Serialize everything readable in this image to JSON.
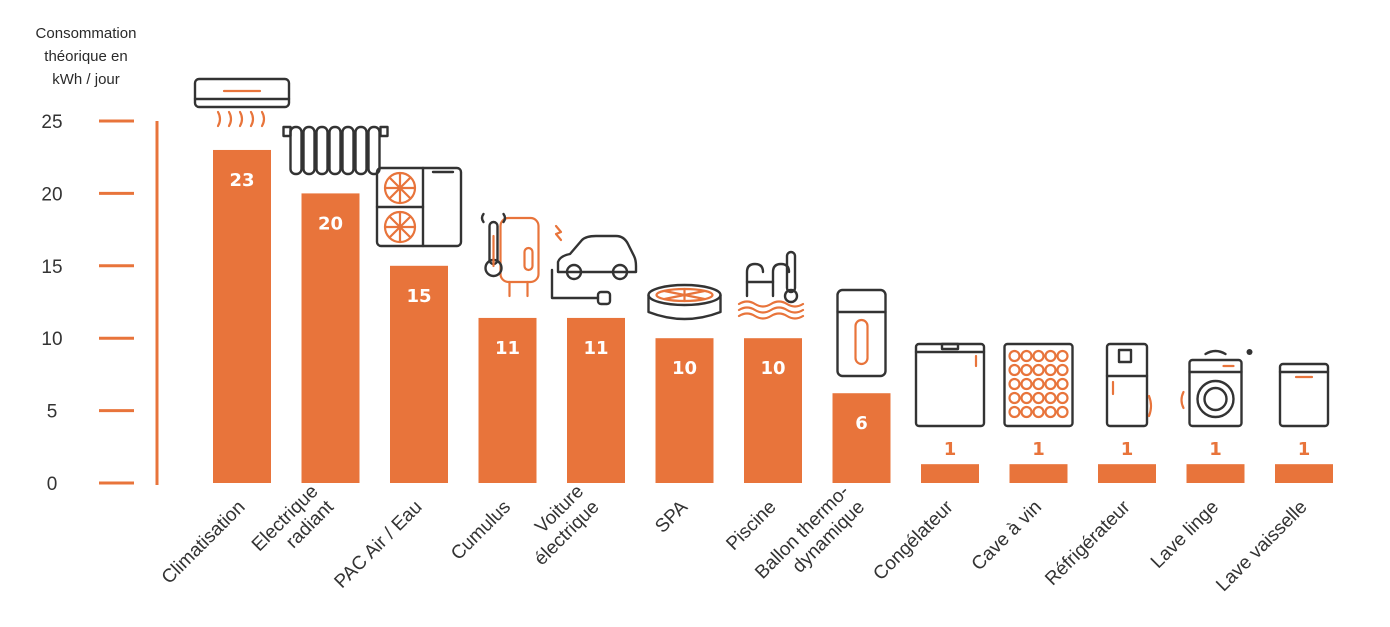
{
  "chart_data": {
    "type": "bar",
    "ylabel": "Consommation théorique en kWh / jour",
    "ylabel_lines": [
      "Consommation",
      "théorique en",
      "kWh / jour"
    ],
    "ylim": [
      0,
      25
    ],
    "yticks": [
      0,
      5,
      10,
      15,
      20,
      25
    ],
    "grid": false,
    "legend": "none",
    "bar_color": "#e8743b",
    "categories": [
      {
        "label_lines": [
          "Climatisation"
        ],
        "value": 23,
        "value_label": "23",
        "icon": "air-conditioner-icon"
      },
      {
        "label_lines": [
          "Electrique",
          "radiant"
        ],
        "value": 20,
        "value_label": "20",
        "icon": "radiator-icon"
      },
      {
        "label_lines": [
          "PAC Air / Eau"
        ],
        "value": 15,
        "value_label": "15",
        "icon": "heat-pump-icon"
      },
      {
        "label_lines": [
          "Cumulus"
        ],
        "value": 11.4,
        "value_label": "11",
        "icon": "water-heater-icon"
      },
      {
        "label_lines": [
          "Voiture",
          "électrique"
        ],
        "value": 11.4,
        "value_label": "11",
        "icon": "electric-car-icon"
      },
      {
        "label_lines": [
          "SPA"
        ],
        "value": 10,
        "value_label": "10",
        "icon": "spa-icon"
      },
      {
        "label_lines": [
          "Piscine"
        ],
        "value": 10,
        "value_label": "10",
        "icon": "pool-icon"
      },
      {
        "label_lines": [
          "Ballon thermo-",
          "dynamique"
        ],
        "value": 6.2,
        "value_label": "6",
        "icon": "thermodynamic-tank-icon"
      },
      {
        "label_lines": [
          "Congélateur"
        ],
        "value": 1.3,
        "value_label": "1",
        "icon": "freezer-icon"
      },
      {
        "label_lines": [
          "Cave à vin"
        ],
        "value": 1.3,
        "value_label": "1",
        "icon": "wine-cellar-icon"
      },
      {
        "label_lines": [
          "Réfrigérateur"
        ],
        "value": 1.3,
        "value_label": "1",
        "icon": "fridge-icon"
      },
      {
        "label_lines": [
          "Lave linge"
        ],
        "value": 1.3,
        "value_label": "1",
        "icon": "washing-machine-icon"
      },
      {
        "label_lines": [
          "Lave vaisselle"
        ],
        "value": 1.3,
        "value_label": "1",
        "icon": "dishwasher-icon"
      }
    ]
  }
}
